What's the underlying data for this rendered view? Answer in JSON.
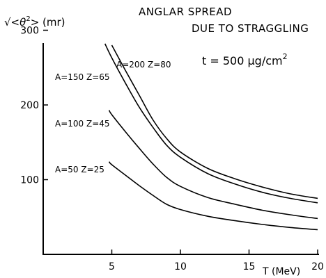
{
  "chart_data": {
    "type": "line",
    "title_line1": "ANGLAR SPREAD",
    "title_line2": "DUE TO STRAGGLING",
    "annotation": "t = 500 μg/cm",
    "annotation_sup": "2",
    "ylabel_prefix": "√<",
    "ylabel_theta": "θ",
    "ylabel_sup": "2",
    "ylabel_suffix": "> (mr)",
    "xlabel": "T (MeV)",
    "xlim": [
      0,
      20
    ],
    "ylim": [
      0,
      320
    ],
    "xticks": [
      5,
      10,
      15,
      20
    ],
    "xtick_labels": [
      "5",
      "10",
      "15",
      "20"
    ],
    "yticks": [
      100,
      200,
      300
    ],
    "ytick_labels": [
      "100",
      "200",
      "300"
    ],
    "series": [
      {
        "label": "A=200 Z=80",
        "points": [
          [
            5,
            280
          ],
          [
            6,
            246
          ],
          [
            7,
            213
          ],
          [
            8,
            180
          ],
          [
            9,
            155
          ],
          [
            10,
            137
          ],
          [
            12,
            115
          ],
          [
            14,
            101
          ],
          [
            16,
            90
          ],
          [
            18,
            81
          ],
          [
            20,
            75
          ]
        ]
      },
      {
        "label": "A=150 Z=65",
        "points": [
          [
            4.5,
            282
          ],
          [
            5,
            263
          ],
          [
            6,
            229
          ],
          [
            7,
            197
          ],
          [
            8,
            170
          ],
          [
            9,
            146
          ],
          [
            10,
            130
          ],
          [
            12,
            108
          ],
          [
            14,
            94
          ],
          [
            16,
            83
          ],
          [
            18,
            75
          ],
          [
            20,
            69
          ]
        ]
      },
      {
        "label": "A=100 Z=45",
        "points": [
          [
            4.8,
            193
          ],
          [
            5,
            187
          ],
          [
            6,
            164
          ],
          [
            7,
            142
          ],
          [
            8,
            121
          ],
          [
            9,
            103
          ],
          [
            10,
            91
          ],
          [
            12,
            76
          ],
          [
            14,
            67
          ],
          [
            16,
            59
          ],
          [
            18,
            53
          ],
          [
            20,
            48
          ]
        ]
      },
      {
        "label": "A=50 Z=25",
        "points": [
          [
            4.8,
            124
          ],
          [
            5,
            120
          ],
          [
            6,
            106
          ],
          [
            7,
            92
          ],
          [
            8,
            79
          ],
          [
            9,
            67
          ],
          [
            10,
            60
          ],
          [
            12,
            51
          ],
          [
            14,
            45
          ],
          [
            16,
            40
          ],
          [
            18,
            36
          ],
          [
            20,
            33
          ]
        ]
      }
    ]
  }
}
